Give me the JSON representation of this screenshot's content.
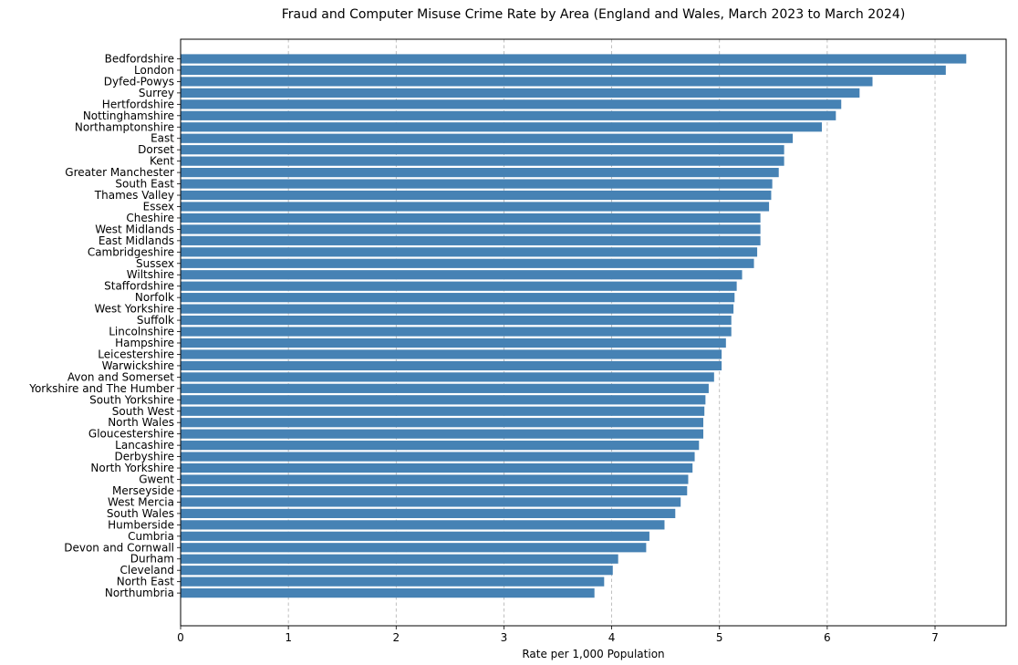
{
  "chart_data": {
    "type": "bar",
    "orientation": "horizontal",
    "title": "Fraud and Computer Misuse Crime Rate by Area (England and Wales, March 2023 to March 2024)",
    "xlabel": "Rate per 1,000 Population",
    "ylabel": "",
    "xlim": [
      0,
      7.66
    ],
    "xticks": [
      0,
      1,
      2,
      3,
      4,
      5,
      6,
      7
    ],
    "grid": "x, dashed",
    "bar_color": "#4682b4",
    "categories": [
      "Bedfordshire",
      "London",
      "Dyfed-Powys",
      "Surrey",
      "Hertfordshire",
      "Nottinghamshire",
      "Northamptonshire",
      "East",
      "Dorset",
      "Kent",
      "Greater Manchester",
      "South East",
      "Thames Valley",
      "Essex",
      "Cheshire",
      "West Midlands",
      "East Midlands",
      "Cambridgeshire",
      "Sussex",
      "Wiltshire",
      "Staffordshire",
      "Norfolk",
      "West Yorkshire",
      "Suffolk",
      "Lincolnshire",
      "Hampshire",
      "Leicestershire",
      "Warwickshire",
      "Avon and Somerset",
      "Yorkshire and The Humber",
      "South Yorkshire",
      "South West",
      "North Wales",
      "Gloucestershire",
      "Lancashire",
      "Derbyshire",
      "North Yorkshire",
      "Gwent",
      "Merseyside",
      "West Mercia",
      "South Wales",
      "Humberside",
      "Cumbria",
      "Devon and Cornwall",
      "Durham",
      "Cleveland",
      "North East",
      "Northumbria"
    ],
    "values": [
      7.29,
      7.1,
      6.42,
      6.3,
      6.13,
      6.08,
      5.95,
      5.68,
      5.6,
      5.6,
      5.55,
      5.49,
      5.48,
      5.46,
      5.38,
      5.38,
      5.38,
      5.35,
      5.32,
      5.21,
      5.16,
      5.14,
      5.13,
      5.11,
      5.11,
      5.06,
      5.02,
      5.02,
      4.95,
      4.9,
      4.87,
      4.86,
      4.85,
      4.85,
      4.81,
      4.77,
      4.75,
      4.71,
      4.7,
      4.64,
      4.59,
      4.49,
      4.35,
      4.32,
      4.06,
      4.01,
      3.93,
      3.84
    ]
  }
}
